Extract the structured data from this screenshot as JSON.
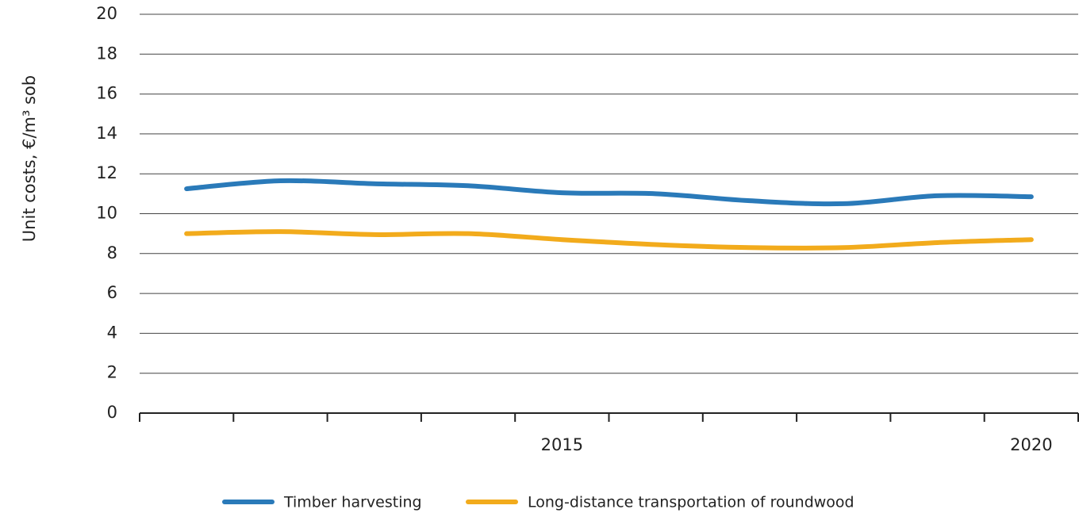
{
  "chart_data": {
    "type": "line",
    "y_label": "Unit costs,  €/m³ sob",
    "categories": [
      null,
      null,
      null,
      null,
      "2015",
      null,
      null,
      null,
      null,
      "2020"
    ],
    "series": [
      {
        "name": "Timber harvesting",
        "color": "#2a7ab9",
        "values": [
          11.25,
          11.65,
          11.5,
          11.4,
          11.05,
          11.0,
          10.65,
          10.5,
          10.9,
          10.85
        ]
      },
      {
        "name": "Long-distance transportation of roundwood",
        "color": "#f2ab1c",
        "values": [
          9.0,
          9.1,
          8.95,
          9.0,
          8.7,
          8.45,
          8.3,
          8.3,
          8.55,
          8.7
        ]
      }
    ],
    "ylim": [
      0,
      20
    ],
    "yticks": [
      0,
      2,
      4,
      6,
      8,
      10,
      12,
      14,
      16,
      18,
      20
    ],
    "grid": true,
    "legend": "bottom"
  }
}
